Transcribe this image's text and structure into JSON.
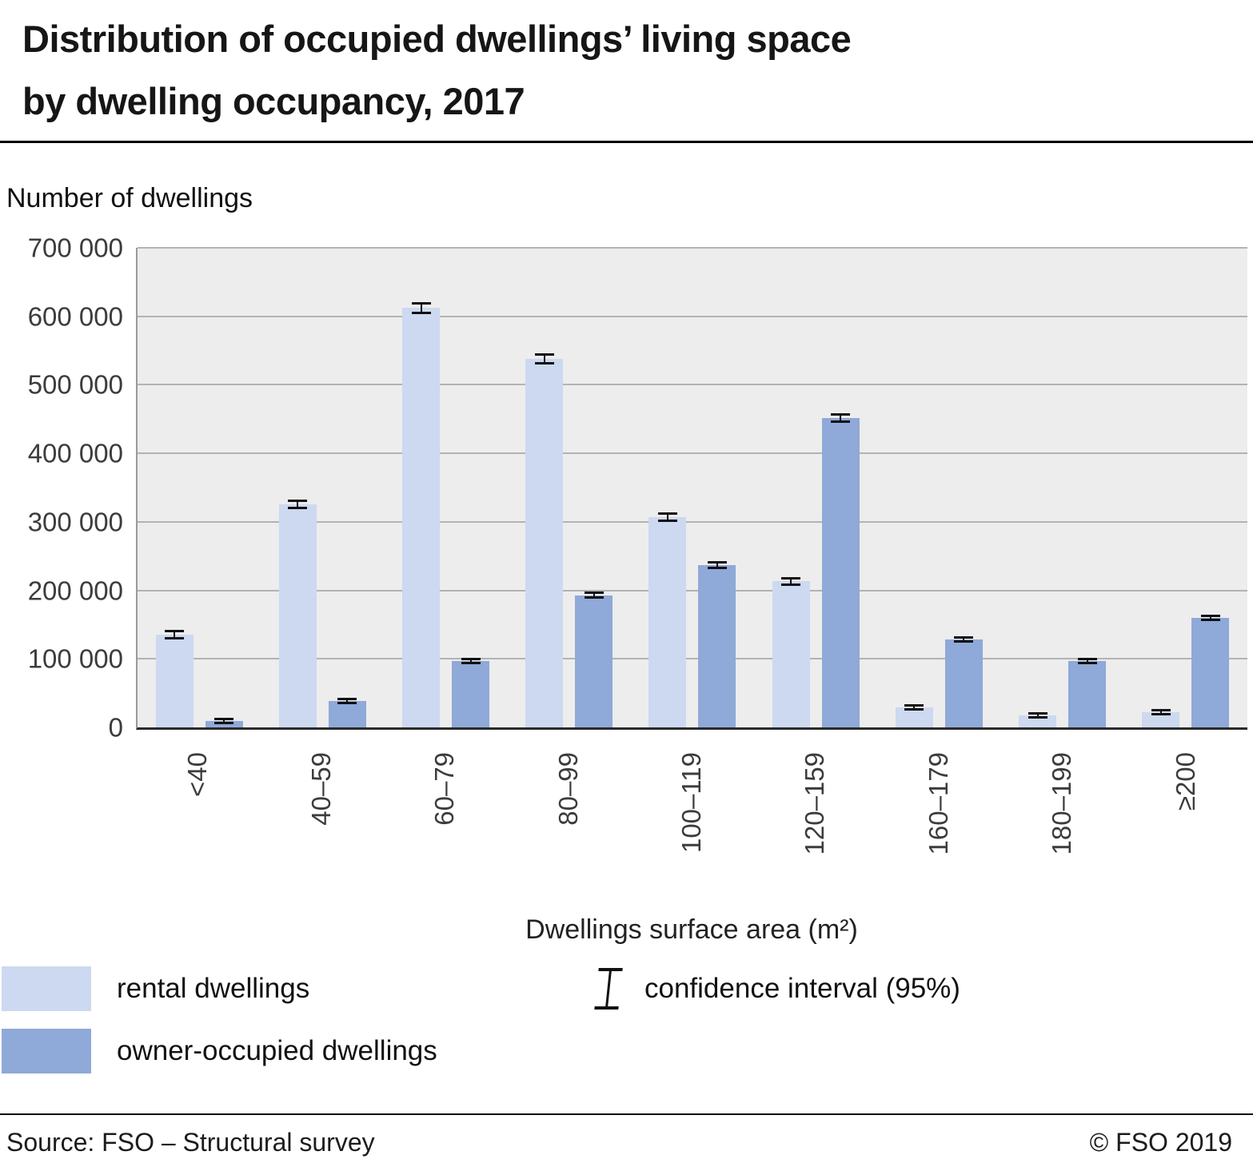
{
  "title": {
    "line1": "Distribution of occupied dwellings’ living space",
    "line2": "by dwelling occupancy, 2017"
  },
  "y_axis_heading": "Number of dwellings",
  "x_axis_title": "Dwellings surface area (m²)",
  "legend": {
    "rental": "rental dwellings",
    "owner": "owner-occupied dwellings",
    "confidence": "confidence interval (95%)"
  },
  "footer": {
    "source": "Source: FSO – Structural survey",
    "copyright": "© FSO 2019"
  },
  "colors": {
    "rental": "#ccd9f0",
    "owner": "#8fa9d8",
    "plot_background": "#ededed",
    "gridline": "#b3b3b3",
    "axis_line": "#2a2a2a",
    "error_bar": "#111111"
  },
  "chart_data": {
    "type": "bar",
    "title": "Distribution of occupied dwellings’ living space by dwelling occupancy, 2017",
    "xlabel": "Dwellings surface area (m²)",
    "ylabel": "Number of dwellings",
    "ylim": [
      0,
      700000
    ],
    "yticks": [
      0,
      100000,
      200000,
      300000,
      400000,
      500000,
      600000,
      700000
    ],
    "ytick_labels": [
      "0",
      "100 000",
      "200 000",
      "300 000",
      "400 000",
      "500 000",
      "600 000",
      "700 000"
    ],
    "categories": [
      "<40",
      "40–59",
      "60–79",
      "80–99",
      "100–119",
      "120–159",
      "160–179",
      "180–199",
      "≥200"
    ],
    "series": [
      {
        "name": "rental dwellings",
        "values": [
          135000,
          325000,
          612000,
          538000,
          307000,
          213000,
          29000,
          17000,
          22000
        ],
        "ci95": [
          7000,
          7000,
          9000,
          8000,
          7000,
          6000,
          2500,
          2000,
          2500
        ]
      },
      {
        "name": "owner-occupied dwellings",
        "values": [
          9000,
          38000,
          97000,
          193000,
          237000,
          452000,
          128000,
          97000,
          160000
        ],
        "ci95": [
          1500,
          3000,
          4500,
          5500,
          6000,
          7000,
          4500,
          4000,
          5000
        ]
      }
    ],
    "grid": "horizontal",
    "legend_position": "bottom-left"
  }
}
